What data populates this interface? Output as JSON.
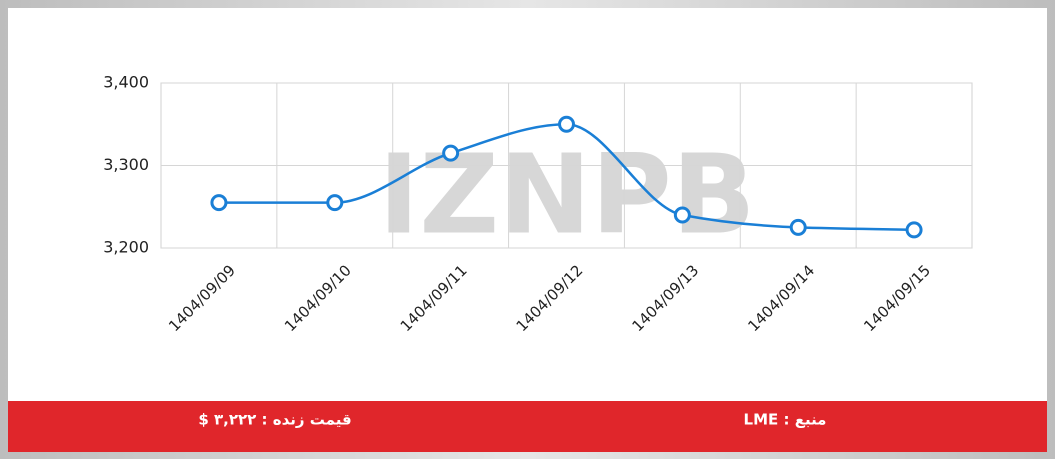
{
  "chart_data": {
    "type": "line",
    "categories": [
      "1404/09/09",
      "1404/09/10",
      "1404/09/11",
      "1404/09/12",
      "1404/09/13",
      "1404/09/14",
      "1404/09/15"
    ],
    "series": [
      {
        "name": "LME",
        "color": "#1a7fd6",
        "values": [
          3255,
          3255,
          3315,
          3350,
          3240,
          3225,
          3222
        ]
      }
    ],
    "ylim": [
      3200,
      3400
    ],
    "yticks": [
      {
        "value": 3200,
        "label": "3,200"
      },
      {
        "value": 3300,
        "label": "3,300"
      },
      {
        "value": 3400,
        "label": "3,400"
      }
    ],
    "grid": true
  },
  "watermark": "IZNPB",
  "footer": {
    "price": "قیمت زنده : ۳,۲۲۲ $",
    "source": "منبع : LME"
  }
}
